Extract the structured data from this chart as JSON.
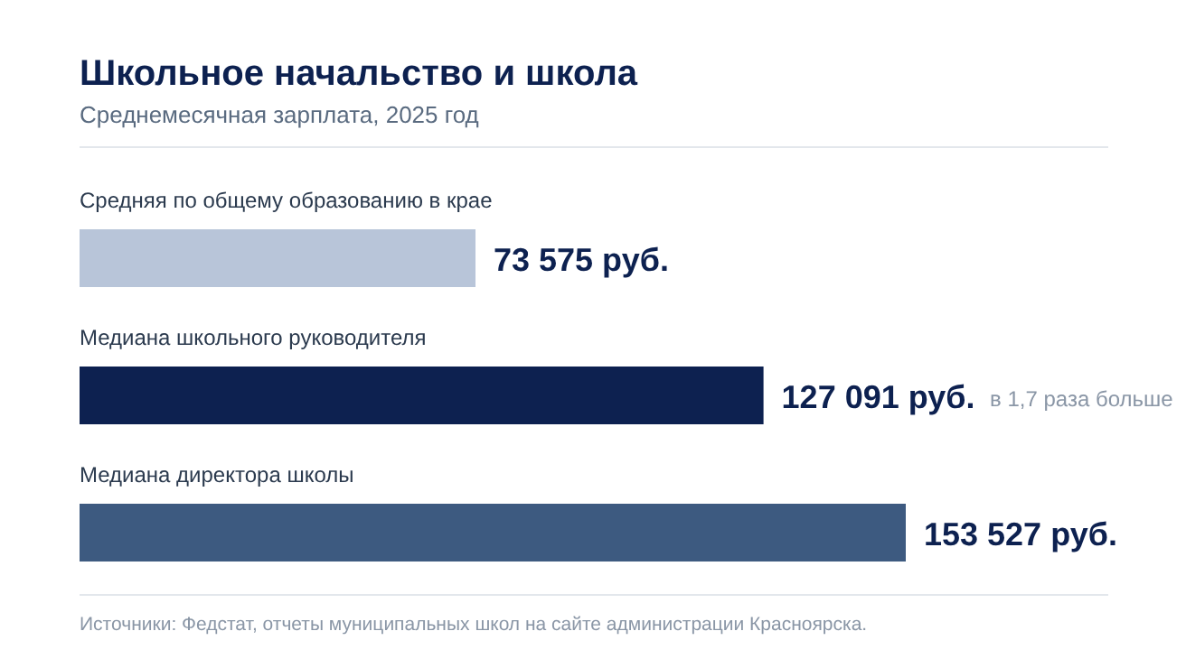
{
  "chart_data": {
    "type": "bar",
    "orientation": "horizontal",
    "title": "Школьное начальство и школа",
    "subtitle": "Среднемесячная зарплата, 2025 год",
    "categories": [
      "Средняя по общему образованию в крае",
      "Медиана школьного руководителя",
      "Медиана директора школы"
    ],
    "values": [
      73575,
      127091,
      153527
    ],
    "value_labels": [
      "73 575 руб.",
      "127 091 руб.",
      "153 527 руб."
    ],
    "colors": [
      "#b8c5d9",
      "#0d2150",
      "#3d5a80"
    ],
    "relative": false,
    "annotations": [
      "в 1,7 раза больше",
      "Источники: Федстат, отчеты муниципальных школ на сайте администрации Красноярска."
    ]
  }
}
